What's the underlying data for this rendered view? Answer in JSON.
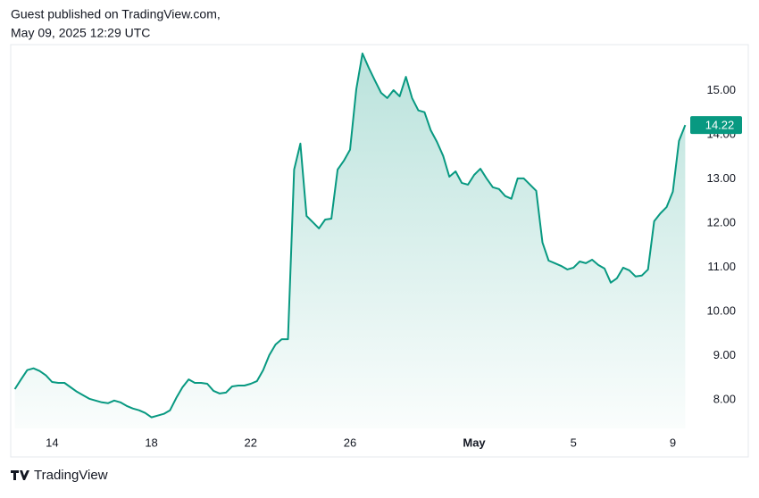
{
  "header": {
    "line1": "Guest published on TradingView.com,",
    "line2": "May 09, 2025 12:29 UTC"
  },
  "footer": {
    "brand": "TradingView"
  },
  "chart_data": {
    "type": "area",
    "x": [
      "2025-04-12T12:00",
      "2025-04-12T18:00",
      "2025-04-13T00:00",
      "2025-04-13T06:00",
      "2025-04-13T12:00",
      "2025-04-13T18:00",
      "2025-04-14T00:00",
      "2025-04-14T06:00",
      "2025-04-14T12:00",
      "2025-04-14T18:00",
      "2025-04-15T00:00",
      "2025-04-15T06:00",
      "2025-04-15T12:00",
      "2025-04-15T18:00",
      "2025-04-16T00:00",
      "2025-04-16T06:00",
      "2025-04-16T12:00",
      "2025-04-16T18:00",
      "2025-04-17T00:00",
      "2025-04-17T06:00",
      "2025-04-17T12:00",
      "2025-04-17T18:00",
      "2025-04-18T00:00",
      "2025-04-18T06:00",
      "2025-04-18T12:00",
      "2025-04-18T18:00",
      "2025-04-19T00:00",
      "2025-04-19T06:00",
      "2025-04-19T12:00",
      "2025-04-19T18:00",
      "2025-04-20T00:00",
      "2025-04-20T06:00",
      "2025-04-20T12:00",
      "2025-04-20T18:00",
      "2025-04-21T00:00",
      "2025-04-21T06:00",
      "2025-04-21T12:00",
      "2025-04-21T18:00",
      "2025-04-22T00:00",
      "2025-04-22T06:00",
      "2025-04-22T12:00",
      "2025-04-22T18:00",
      "2025-04-23T00:00",
      "2025-04-23T06:00",
      "2025-04-23T12:00",
      "2025-04-23T18:00",
      "2025-04-24T00:00",
      "2025-04-24T06:00",
      "2025-04-24T12:00",
      "2025-04-24T18:00",
      "2025-04-25T00:00",
      "2025-04-25T06:00",
      "2025-04-25T12:00",
      "2025-04-25T18:00",
      "2025-04-26T00:00",
      "2025-04-26T06:00",
      "2025-04-26T12:00",
      "2025-04-26T18:00",
      "2025-04-27T00:00",
      "2025-04-27T06:00",
      "2025-04-27T12:00",
      "2025-04-27T18:00",
      "2025-04-28T00:00",
      "2025-04-28T06:00",
      "2025-04-28T12:00",
      "2025-04-28T18:00",
      "2025-04-29T00:00",
      "2025-04-29T06:00",
      "2025-04-29T12:00",
      "2025-04-29T18:00",
      "2025-04-30T00:00",
      "2025-04-30T06:00",
      "2025-04-30T12:00",
      "2025-04-30T18:00",
      "2025-05-01T00:00",
      "2025-05-01T06:00",
      "2025-05-01T12:00",
      "2025-05-01T18:00",
      "2025-05-02T00:00",
      "2025-05-02T06:00",
      "2025-05-02T12:00",
      "2025-05-02T18:00",
      "2025-05-03T00:00",
      "2025-05-03T06:00",
      "2025-05-03T12:00",
      "2025-05-03T18:00",
      "2025-05-04T00:00",
      "2025-05-04T06:00",
      "2025-05-04T12:00",
      "2025-05-04T18:00",
      "2025-05-05T00:00",
      "2025-05-05T06:00",
      "2025-05-05T12:00",
      "2025-05-05T18:00",
      "2025-05-06T00:00",
      "2025-05-06T06:00",
      "2025-05-06T12:00",
      "2025-05-06T18:00",
      "2025-05-07T00:00",
      "2025-05-07T06:00",
      "2025-05-07T12:00",
      "2025-05-07T18:00",
      "2025-05-08T00:00",
      "2025-05-08T06:00",
      "2025-05-08T12:00",
      "2025-05-08T18:00",
      "2025-05-09T00:00",
      "2025-05-09T06:00",
      "2025-05-09T12:00"
    ],
    "series": [
      {
        "color": "#089981",
        "values": [
          8.24,
          8.46,
          8.67,
          8.71,
          8.65,
          8.55,
          8.4,
          8.38,
          8.38,
          8.28,
          8.18,
          8.1,
          8.02,
          7.98,
          7.94,
          7.92,
          7.98,
          7.94,
          7.86,
          7.8,
          7.76,
          7.7,
          7.6,
          7.64,
          7.68,
          7.76,
          8.04,
          8.28,
          8.46,
          8.38,
          8.38,
          8.36,
          8.2,
          8.14,
          8.16,
          8.3,
          8.32,
          8.32,
          8.36,
          8.42,
          8.67,
          9.01,
          9.25,
          9.37,
          9.37,
          13.21,
          13.8,
          12.16,
          12.02,
          11.88,
          12.08,
          12.1,
          13.21,
          13.41,
          13.66,
          15.03,
          15.84,
          15.52,
          15.23,
          14.95,
          14.83,
          15.01,
          14.87,
          15.31,
          14.83,
          14.55,
          14.51,
          14.1,
          13.84,
          13.52,
          13.05,
          13.17,
          12.91,
          12.87,
          13.09,
          13.23,
          13.01,
          12.81,
          12.77,
          12.61,
          12.55,
          13.01,
          13.01,
          12.87,
          12.73,
          11.56,
          11.15,
          11.09,
          11.03,
          10.95,
          10.99,
          11.13,
          11.09,
          11.17,
          11.05,
          10.97,
          10.65,
          10.75,
          10.99,
          10.93,
          10.79,
          10.81,
          10.95,
          12.04,
          12.22,
          12.36,
          12.71,
          13.86,
          14.22
        ]
      }
    ],
    "xlim": [
      "2025-04-12T08:00",
      "2025-05-09T16:00"
    ],
    "xticks": [
      {
        "value": "2025-04-14T00:00",
        "label": "14"
      },
      {
        "value": "2025-04-18T00:00",
        "label": "18"
      },
      {
        "value": "2025-04-22T00:00",
        "label": "22"
      },
      {
        "value": "2025-04-26T00:00",
        "label": "26"
      },
      {
        "value": "2025-05-01T00:00",
        "label": "May"
      },
      {
        "value": "2025-05-05T00:00",
        "label": "5"
      },
      {
        "value": "2025-05-09T00:00",
        "label": "9"
      }
    ],
    "ylim": [
      7.35,
      16.0
    ],
    "yticks": [
      {
        "value": 8,
        "label": "8.00"
      },
      {
        "value": 9,
        "label": "9.00"
      },
      {
        "value": 10,
        "label": "10.00"
      },
      {
        "value": 11,
        "label": "11.00"
      },
      {
        "value": 12,
        "label": "12.00"
      },
      {
        "value": 13,
        "label": "13.00"
      },
      {
        "value": 14,
        "label": "14.00"
      },
      {
        "value": 15,
        "label": "15.00"
      }
    ],
    "grid": false
  }
}
